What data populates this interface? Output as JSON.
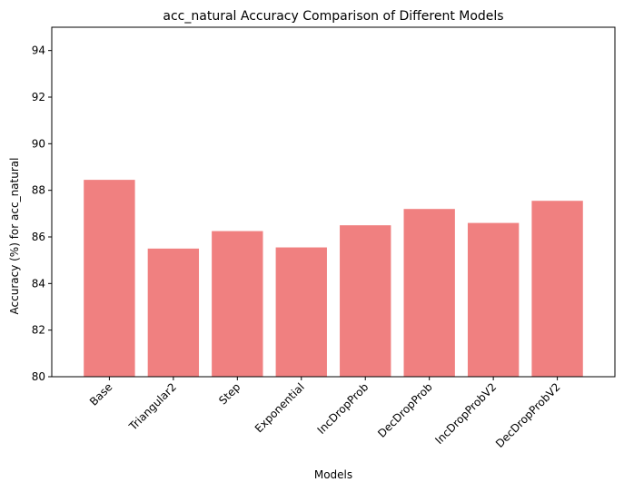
{
  "chart_data": {
    "type": "bar",
    "title": "acc_natural Accuracy Comparison of Different Models",
    "xlabel": "Models",
    "ylabel": "Accuracy (%) for acc_natural",
    "categories": [
      "Base",
      "Triangular2",
      "Step",
      "Exponential",
      "IncDropProb",
      "DecDropProb",
      "IncDropProbV2",
      "DecDropProbV2"
    ],
    "values": [
      88.45,
      85.5,
      86.25,
      85.55,
      86.5,
      87.2,
      86.6,
      87.55
    ],
    "ylim": [
      80,
      95
    ],
    "yticks": [
      80,
      82,
      84,
      86,
      88,
      90,
      92,
      94
    ],
    "bar_color": "#f08080",
    "grid": false,
    "xtick_rotation": 45
  }
}
